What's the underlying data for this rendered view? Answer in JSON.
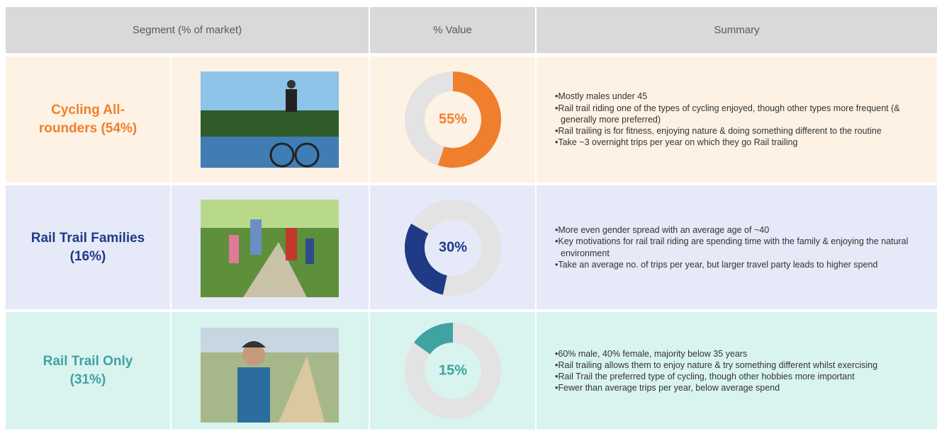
{
  "header": {
    "columns": [
      "Segment (% of market)",
      "% Value",
      "Summary"
    ]
  },
  "rows": [
    {
      "segment": "Cycling All-rounders (54%)",
      "value": 55,
      "value_label": "55%",
      "summary": [
        "Mostly males under 45",
        "Rail trail riding one of the types of cycling enjoyed, though other types more frequent (& generally more preferred)",
        "Rail trailing is for fitness, enjoying nature & doing something different to the routine",
        "Take ~3 overnight trips per year on which they go Rail trailing"
      ]
    },
    {
      "segment": "Rail Trail Families (16%)",
      "value": 30,
      "value_label": "30%",
      "summary": [
        "More even gender spread with an average age of ~40",
        "Key motivations for rail trail riding are spending time with the family & enjoying the natural environment",
        "Take an average no. of trips per year, but larger travel party leads to higher spend"
      ]
    },
    {
      "segment": "Rail Trail Only (31%)",
      "value": 15,
      "value_label": "15%",
      "summary": [
        "60% male, 40% female, majority below 35 years",
        "Rail trailing allows them to enjoy nature & try something different whilst exercising",
        "Rail Trail the preferred type of cycling, though other hobbies more important",
        "Fewer than average trips per year, below average spend"
      ]
    }
  ]
}
